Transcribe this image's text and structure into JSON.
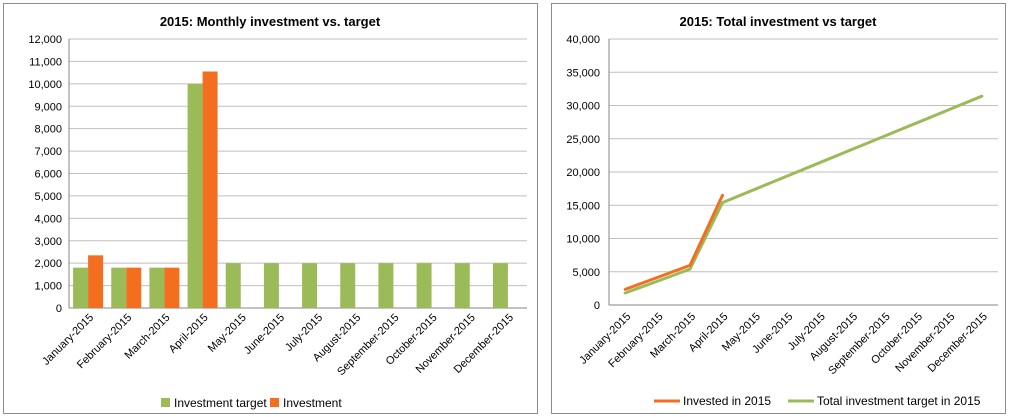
{
  "chart_data": [
    {
      "type": "bar",
      "title": "2015: Monthly investment vs. target",
      "categories": [
        "January-2015",
        "February-2015",
        "March-2015",
        "April-2015",
        "May-2015",
        "June-2015",
        "July-2015",
        "August-2015",
        "September-2015",
        "October-2015",
        "November-2015",
        "December-2015"
      ],
      "series": [
        {
          "name": "Investment target",
          "color": "#9bbb59",
          "values": [
            1800,
            1800,
            1800,
            10000,
            2000,
            2000,
            2000,
            2000,
            2000,
            2000,
            2000,
            2000
          ]
        },
        {
          "name": "Investment",
          "color": "#f36f1f",
          "values": [
            2350,
            1800,
            1800,
            10550,
            null,
            null,
            null,
            null,
            null,
            null,
            null,
            null
          ]
        }
      ],
      "ylim": [
        0,
        12000
      ],
      "yticks": [
        "0",
        "1,000",
        "2,000",
        "3,000",
        "4,000",
        "5,000",
        "6,000",
        "7,000",
        "8,000",
        "9,000",
        "10,000",
        "11,000",
        "12,000"
      ],
      "ytick_values": [
        0,
        1000,
        2000,
        3000,
        4000,
        5000,
        6000,
        7000,
        8000,
        9000,
        10000,
        11000,
        12000
      ],
      "grid": true,
      "legend": "bottom"
    },
    {
      "type": "line",
      "title": "2015: Total investment vs target",
      "categories": [
        "January-2015",
        "February-2015",
        "March-2015",
        "April-2015",
        "May-2015",
        "June-2015",
        "July-2015",
        "August-2015",
        "September-2015",
        "October-2015",
        "November-2015",
        "December-2015"
      ],
      "series": [
        {
          "name": "Invested in 2015",
          "color": "#f36f1f",
          "values": [
            2350,
            4150,
            5950,
            16500,
            null,
            null,
            null,
            null,
            null,
            null,
            null,
            null
          ]
        },
        {
          "name": "Total investment target in 2015",
          "color": "#9bbb59",
          "values": [
            1800,
            3600,
            5400,
            15400,
            17400,
            19400,
            21400,
            23400,
            25400,
            27400,
            29400,
            31400
          ]
        }
      ],
      "ylim": [
        0,
        40000
      ],
      "yticks": [
        "0",
        "5,000",
        "10,000",
        "15,000",
        "20,000",
        "25,000",
        "30,000",
        "35,000",
        "40,000"
      ],
      "ytick_values": [
        0,
        5000,
        10000,
        15000,
        20000,
        25000,
        30000,
        35000,
        40000
      ],
      "grid": true,
      "legend": "bottom"
    }
  ]
}
